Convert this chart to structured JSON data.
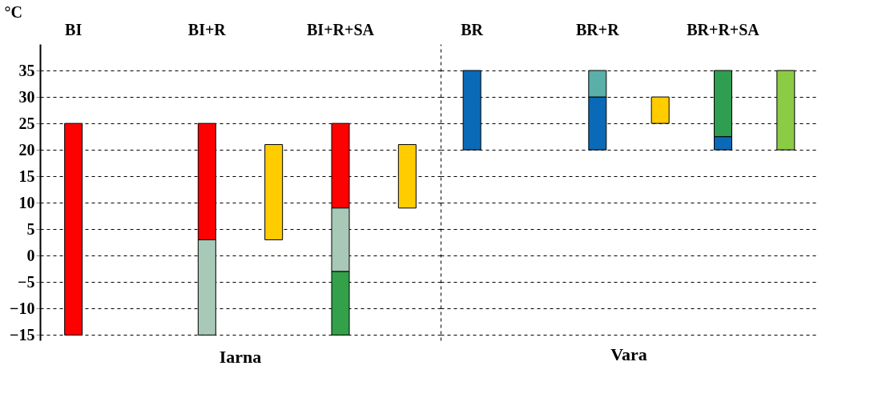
{
  "chart_data": [
    {
      "type": "bar",
      "xlabel": "Iarna",
      "ylabel": "°C",
      "categories": [
        "BI",
        null,
        "BI+R",
        null,
        "BI+R+SA",
        null
      ],
      "series": [
        {
          "color": "#ff0000",
          "values": [
            40,
            null,
            22,
            null,
            16,
            null
          ],
          "base": [
            -15,
            null,
            3,
            null,
            9,
            null
          ]
        },
        {
          "color": "#a8c8b8",
          "values": [
            null,
            null,
            18,
            null,
            12,
            null
          ],
          "base": [
            null,
            null,
            -15,
            null,
            -3,
            null
          ]
        },
        {
          "color": "#33a04a",
          "values": [
            null,
            null,
            null,
            null,
            12,
            null
          ],
          "base": [
            null,
            null,
            null,
            null,
            -15,
            null
          ]
        },
        {
          "color": "#ffcc00",
          "values": [
            null,
            null,
            null,
            -18,
            null,
            -12
          ],
          "base": [
            null,
            null,
            null,
            21,
            null,
            21
          ]
        }
      ],
      "ylim": [
        -16,
        40
      ],
      "yticks": [
        -15,
        -10,
        -5,
        0,
        5,
        10,
        15,
        20,
        25,
        30,
        35
      ],
      "grid": "y"
    },
    {
      "type": "bar",
      "xlabel": "Vara",
      "categories": [
        "BR",
        null,
        "BR+R",
        null,
        "BR+R+SA",
        null
      ],
      "series": [
        {
          "color": "#0a6ab8",
          "values": [
            -15,
            null,
            -10,
            null,
            -2.5,
            null
          ],
          "base": [
            35,
            null,
            30,
            null,
            22.5,
            null
          ]
        },
        {
          "color": "#5ab0a8",
          "values": [
            null,
            null,
            -5,
            null,
            null,
            null
          ],
          "base": [
            null,
            null,
            35,
            null,
            null,
            null
          ]
        },
        {
          "color": "#ffcc00",
          "values": [
            null,
            null,
            null,
            5,
            null,
            null
          ],
          "base": [
            null,
            null,
            null,
            25,
            null,
            null
          ]
        },
        {
          "color": "#2f9e50",
          "values": [
            null,
            null,
            null,
            null,
            -12.5,
            null
          ],
          "base": [
            null,
            null,
            null,
            null,
            35,
            null
          ]
        },
        {
          "color": "#8ccc44",
          "values": [
            null,
            null,
            null,
            null,
            null,
            -15
          ],
          "base": [
            null,
            null,
            null,
            null,
            null,
            35
          ]
        }
      ],
      "ylim": [
        -16,
        40
      ],
      "yticks": [
        -15,
        -10,
        -5,
        0,
        5,
        10,
        15,
        20,
        25,
        30,
        35
      ],
      "grid": "y",
      "tick_labels": "x"
    }
  ]
}
